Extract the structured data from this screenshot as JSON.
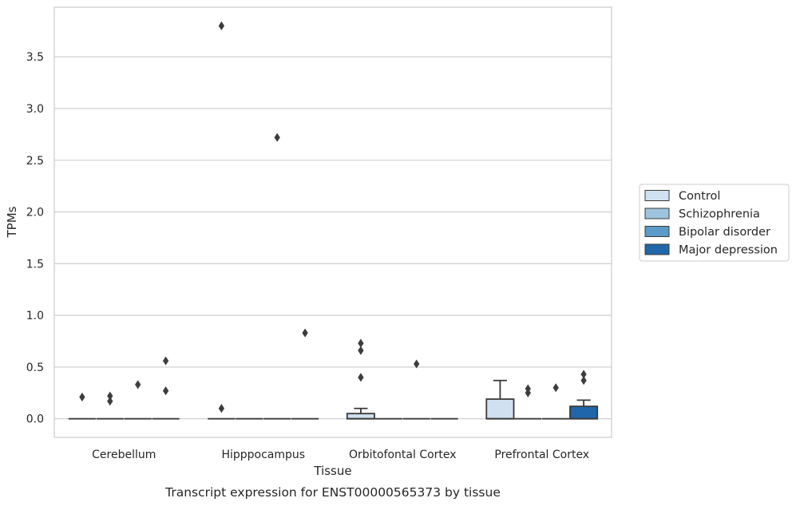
{
  "chart_data": {
    "type": "box",
    "title": "",
    "caption": "Transcript expression for ENST00000565373 by tissue",
    "xlabel": "Tissue",
    "ylabel": "TPMs",
    "ylim": [
      -0.18,
      3.98
    ],
    "yticks": [
      "0.0",
      "0.5",
      "1.0",
      "1.5",
      "2.0",
      "2.5",
      "3.0",
      "3.5"
    ],
    "ytick_values": [
      0,
      0.5,
      1.0,
      1.5,
      2.0,
      2.5,
      3.0,
      3.5
    ],
    "grid": "horizontal",
    "legend_position": "right",
    "categories": [
      "Cerebellum",
      "Hipppocampus",
      "Orbitofontal Cortex",
      "Prefrontal Cortex"
    ],
    "series": [
      {
        "name": "Control",
        "color": "#d0e0f0",
        "boxes": [
          {
            "q1": 0,
            "median": 0,
            "q3": 0,
            "whislo": 0,
            "whishi": 0,
            "fliers": [
              0.21
            ]
          },
          {
            "q1": 0,
            "median": 0,
            "q3": 0,
            "whislo": 0,
            "whishi": 0,
            "fliers": [
              0.1,
              3.8
            ]
          },
          {
            "q1": 0,
            "median": 0,
            "q3": 0.05,
            "whislo": 0,
            "whishi": 0.1,
            "fliers": [
              0.4,
              0.66,
              0.73
            ]
          },
          {
            "q1": 0,
            "median": 0,
            "q3": 0.19,
            "whislo": 0,
            "whishi": 0.37,
            "fliers": []
          }
        ]
      },
      {
        "name": "Schizophrenia",
        "color": "#9dc4df",
        "boxes": [
          {
            "q1": 0,
            "median": 0,
            "q3": 0,
            "whislo": 0,
            "whishi": 0,
            "fliers": [
              0.17,
              0.22
            ]
          },
          {
            "q1": 0,
            "median": 0,
            "q3": 0,
            "whislo": 0,
            "whishi": 0,
            "fliers": []
          },
          {
            "q1": 0,
            "median": 0,
            "q3": 0,
            "whislo": 0,
            "whishi": 0,
            "fliers": []
          },
          {
            "q1": 0,
            "median": 0,
            "q3": 0,
            "whislo": 0,
            "whishi": 0,
            "fliers": [
              0.25,
              0.29
            ]
          }
        ]
      },
      {
        "name": "Bipolar disorder",
        "color": "#5a9ac8",
        "boxes": [
          {
            "q1": 0,
            "median": 0,
            "q3": 0,
            "whislo": 0,
            "whishi": 0,
            "fliers": [
              0.33
            ]
          },
          {
            "q1": 0,
            "median": 0,
            "q3": 0,
            "whislo": 0,
            "whishi": 0,
            "fliers": [
              2.72
            ]
          },
          {
            "q1": 0,
            "median": 0,
            "q3": 0,
            "whislo": 0,
            "whishi": 0,
            "fliers": [
              0.53
            ]
          },
          {
            "q1": 0,
            "median": 0,
            "q3": 0,
            "whislo": 0,
            "whishi": 0,
            "fliers": [
              0.3
            ]
          }
        ]
      },
      {
        "name": "Major depression",
        "color": "#2066ab",
        "boxes": [
          {
            "q1": 0,
            "median": 0,
            "q3": 0,
            "whislo": 0,
            "whishi": 0,
            "fliers": [
              0.27,
              0.56
            ]
          },
          {
            "q1": 0,
            "median": 0,
            "q3": 0,
            "whislo": 0,
            "whishi": 0,
            "fliers": [
              0.83
            ]
          },
          {
            "q1": 0,
            "median": 0,
            "q3": 0,
            "whislo": 0,
            "whishi": 0,
            "fliers": []
          },
          {
            "q1": 0,
            "median": 0,
            "q3": 0.12,
            "whislo": 0,
            "whishi": 0.18,
            "fliers": [
              0.37,
              0.43
            ]
          }
        ]
      }
    ]
  }
}
